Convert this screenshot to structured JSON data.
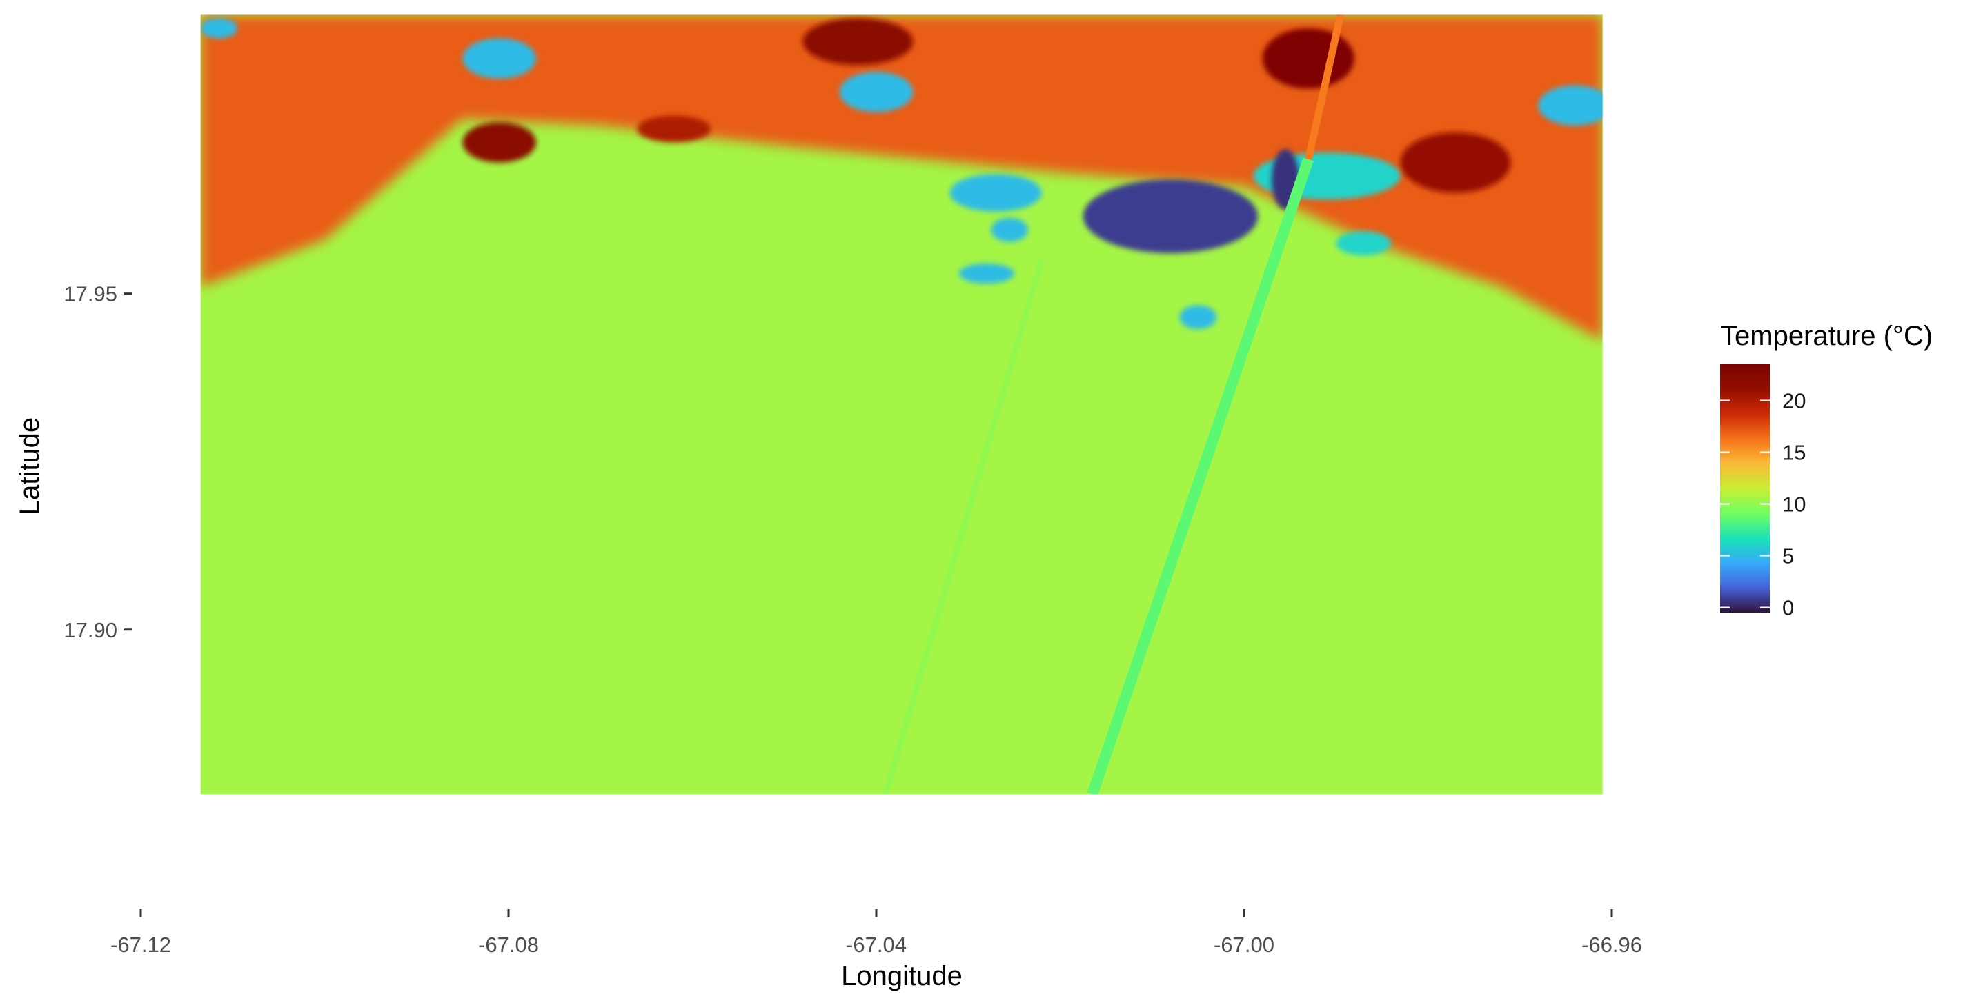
{
  "chart_data": {
    "type": "heatmap",
    "title": "",
    "xlabel": "Longitude",
    "ylabel": "Latitude",
    "xlim": [
      -67.12,
      -66.96
    ],
    "ylim": [
      17.87,
      17.99
    ],
    "x_extent": [
      -67.1135,
      -66.961
    ],
    "y_extent": [
      17.8755,
      17.9915
    ],
    "x_ticks": [
      -67.12,
      -67.08,
      -67.04,
      -67.0,
      -66.96
    ],
    "x_tick_labels": [
      "-67.12",
      "-67.08",
      "-67.04",
      "-67.00",
      "-66.96"
    ],
    "y_ticks": [
      17.9,
      17.95
    ],
    "y_tick_labels": [
      "17.90",
      "17.95"
    ],
    "grid": false,
    "colorscale": "turbo",
    "background_value": 10.5,
    "legend": {
      "title": "Temperature (°C)",
      "position": "right",
      "min": -0.5,
      "max": 23.5,
      "ticks": [
        0,
        5,
        10,
        15,
        20
      ],
      "tick_labels": [
        "0",
        "5",
        "10",
        "15",
        "20"
      ]
    },
    "features": [
      {
        "name": "warm coastal band",
        "value": 17,
        "polygon": [
          [
            -67.1135,
            17.9915
          ],
          [
            -66.961,
            17.9915
          ],
          [
            -66.961,
            17.943
          ],
          [
            -66.972,
            17.951
          ],
          [
            -66.985,
            17.957
          ],
          [
            -67.0,
            17.966
          ],
          [
            -67.02,
            17.968
          ],
          [
            -67.05,
            17.972
          ],
          [
            -67.07,
            17.975
          ],
          [
            -67.085,
            17.976
          ],
          [
            -67.1,
            17.958
          ],
          [
            -67.1135,
            17.951
          ]
        ]
      },
      {
        "name": "hot spot",
        "value": 22,
        "center": [
          -67.081,
          17.9725
        ],
        "radius": [
          0.004,
          0.003
        ]
      },
      {
        "name": "hot spot",
        "value": 22,
        "center": [
          -67.042,
          17.9875
        ],
        "radius": [
          0.006,
          0.0035
        ]
      },
      {
        "name": "hot spot",
        "value": 23,
        "center": [
          -66.993,
          17.985
        ],
        "radius": [
          0.005,
          0.0045
        ]
      },
      {
        "name": "hot spot",
        "value": 21,
        "center": [
          -66.977,
          17.9695
        ],
        "radius": [
          0.006,
          0.0045
        ]
      },
      {
        "name": "hot spot",
        "value": 20,
        "center": [
          -67.062,
          17.9745
        ],
        "radius": [
          0.004,
          0.002
        ]
      },
      {
        "name": "cold patch",
        "value": 5,
        "center": [
          -67.081,
          17.985
        ],
        "radius": [
          0.004,
          0.003
        ]
      },
      {
        "name": "cold patch",
        "value": 5,
        "center": [
          -67.04,
          17.98
        ],
        "radius": [
          0.004,
          0.003
        ]
      },
      {
        "name": "cold patch",
        "value": 5,
        "center": [
          -66.964,
          17.978
        ],
        "radius": [
          0.004,
          0.003
        ]
      },
      {
        "name": "cold patch",
        "value": 5,
        "center": [
          -67.1115,
          17.9895
        ],
        "radius": [
          0.002,
          0.0015
        ]
      },
      {
        "name": "cold patch",
        "value": 5,
        "center": [
          -67.027,
          17.965
        ],
        "radius": [
          0.005,
          0.0028
        ]
      },
      {
        "name": "cold patch",
        "value": 5,
        "center": [
          -67.0255,
          17.9595
        ],
        "radius": [
          0.002,
          0.0018
        ]
      },
      {
        "name": "cold patch",
        "value": 5,
        "center": [
          -67.028,
          17.953
        ],
        "radius": [
          0.003,
          0.0015
        ]
      },
      {
        "name": "cold patch",
        "value": 5,
        "center": [
          -67.005,
          17.9465
        ],
        "radius": [
          0.002,
          0.0018
        ]
      },
      {
        "name": "cold patch",
        "value": 6,
        "center": [
          -66.991,
          17.9675
        ],
        "radius": [
          0.008,
          0.0035
        ]
      },
      {
        "name": "cold patch",
        "value": 6,
        "center": [
          -66.987,
          17.9575
        ],
        "radius": [
          0.003,
          0.0018
        ]
      },
      {
        "name": "cold core",
        "value": 0.8,
        "center": [
          -67.008,
          17.9615
        ],
        "radius": [
          0.0095,
          0.0055
        ]
      },
      {
        "name": "cold core",
        "value": 0.5,
        "center": [
          -66.9955,
          17.967
        ],
        "radius": [
          0.0015,
          0.0045
        ]
      }
    ],
    "lines": [
      {
        "name": "main streak",
        "value": 8.5,
        "from": [
          -66.993,
          17.97
        ],
        "to": [
          -67.0165,
          17.8755
        ],
        "width": 0.0012
      },
      {
        "name": "streak top",
        "value": 16,
        "from": [
          -66.9895,
          17.9915
        ],
        "to": [
          -66.993,
          17.97
        ],
        "width": 0.0008
      },
      {
        "name": "faint streak",
        "value": 10.0,
        "from": [
          -67.022,
          17.955
        ],
        "to": [
          -67.039,
          17.8755
        ],
        "width": 0.0007
      }
    ]
  }
}
